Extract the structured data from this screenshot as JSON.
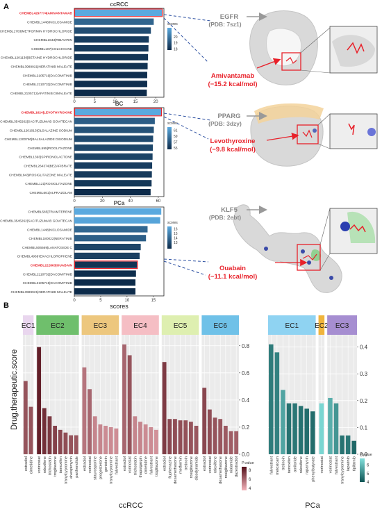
{
  "panel_labels": {
    "a": "A",
    "b": "B"
  },
  "chart_data": [
    {
      "type": "bar",
      "orientation": "horizontal",
      "title": "ccRCC",
      "xlabel": "",
      "categories": [
        "CHEMBL4297774|AMIVANTAMAB",
        "CHEMBL1448|NICLOSAMIDE",
        "CHEMBL1703|METFORMIN HYDROCHLORIDE",
        "CHEMBL1643|RIBAVIRIN",
        "CHEMBL107|COLCHICINE",
        "CHEMBL1201130|BETAINE HYDROCHLORIDE",
        "CHEMBL3989921|NERATINIB MALEATE",
        "CHEMBL2105719|DACOMITINIB",
        "CHEMBL2110732|DACOMITINIB",
        "CHEMBL2105712|AFATINIB DIMALEATE"
      ],
      "values": [
        21.5,
        19.5,
        18.8,
        18.3,
        18.2,
        18.1,
        18.0,
        17.9,
        17.9,
        17.8
      ],
      "highlight_index": 0,
      "xticks": [
        "0",
        "5",
        "10",
        "15",
        "20"
      ],
      "xlim": [
        0,
        22
      ],
      "legend": {
        "title": "scores",
        "ticks": [
          "20",
          "19",
          "18"
        ],
        "range": [
          17.8,
          21.5
        ]
      }
    },
    {
      "type": "bar",
      "orientation": "horizontal",
      "title": "BC",
      "xlabel": "",
      "categories": [
        "CHEMBL1624|LEVOTHYROXINE",
        "CHEMBL3545262|SACITUZUMAB GOVITECAN",
        "CHEMBL1201013|OLSALAZINE SODIUM",
        "CHEMBL1200760|BALSALAZIDE DISODIUM",
        "CHEMBL595|PIOGLITAZONE",
        "CHEMBL1393|SPIRONOLACTONE",
        "CHEMBL264374|BEZAFIBRATE",
        "CHEMBL843|ROSIGLITAZONE MALEATE",
        "CHEMBL121|ROSIGLITAZONE",
        "CHEMBL661|ALPRAZOLAM"
      ],
      "values": [
        62.0,
        57.5,
        56.8,
        56.3,
        56.1,
        55.9,
        55.6,
        55.4,
        55.2,
        54.5
      ],
      "highlight_index": 0,
      "xticks": [
        "0",
        "20",
        "40",
        "60"
      ],
      "xlim": [
        0,
        64
      ],
      "legend": {
        "title": "scores",
        "ticks": [
          "61",
          "59",
          "57",
          "55"
        ],
        "range": [
          54.5,
          62.0
        ]
      }
    },
    {
      "type": "bar",
      "orientation": "horizontal",
      "title": "PCa",
      "xlabel": "scores",
      "categories": [
        "CHEMBL585|TRIAMTERENE",
        "CHEMBL3545262|SACITUZUMAB GOVITECAN",
        "CHEMBL1448|NICLOSAMIDE",
        "CHEMBL180022|NERATINIB",
        "CHEMBL506569|LANATOSIDE C",
        "CHEMBL496|HEXACHLOROPHENE",
        "CHEMBL222863|OUABAIN",
        "CHEMBL2110732|DACOMITINIB",
        "CHEMBL2105719|DACOMITINIB",
        "CHEMBL3989921|NERATINIB MALEATE"
      ],
      "values": [
        16.5,
        16.3,
        13.9,
        13.6,
        12.6,
        12.4,
        11.9,
        11.7,
        11.6,
        11.6
      ],
      "highlight_index": 6,
      "xticks": [
        "0",
        "5",
        "10",
        "15"
      ],
      "xlim": [
        0,
        17
      ],
      "legend": {
        "title": "scores",
        "ticks": [
          "16",
          "15",
          "14",
          "13"
        ],
        "range": [
          11.6,
          16.5
        ]
      }
    },
    {
      "type": "bar",
      "title": "ccRCC",
      "ylabel": "Drug.therapeutic.score",
      "ylim": [
        0,
        0.85
      ],
      "yticks": [
        "0.0",
        "0.2",
        "0.4",
        "0.6",
        "0.8"
      ],
      "groups": [
        {
          "label": "EC1",
          "color": "#E9D6EE",
          "categories": [
            "estradiol",
            "cimetidine"
          ],
          "values": [
            0.54,
            0.35
          ],
          "pvalues": [
            6.6,
            6.6
          ]
        },
        {
          "label": "EC2",
          "color": "#6FBF6C",
          "categories": [
            "vorinostat",
            "raloxifene",
            "trichostatin",
            "troglitazone",
            "tamoxifen",
            "tranylcypromine",
            "alvespimycin",
            "parthenolide"
          ],
          "values": [
            0.79,
            0.34,
            0.28,
            0.21,
            0.18,
            0.16,
            0.14,
            0.14
          ],
          "pvalues": [
            8.3,
            7.8,
            7.5,
            7.2,
            7.0,
            6.8,
            6.6,
            6.5
          ]
        },
        {
          "label": "EC3",
          "color": "#EDC77E",
          "categories": [
            "estradiol",
            "vorinostat",
            "staurosporine",
            "progesterone",
            "genistein",
            "tranylcypromine",
            "fulvestrant"
          ],
          "values": [
            0.64,
            0.48,
            0.28,
            0.22,
            0.21,
            0.2,
            0.19
          ],
          "pvalues": [
            5.5,
            6.0,
            5.0,
            5.0,
            4.8,
            4.8,
            4.7
          ]
        },
        {
          "label": "EC4",
          "color": "#F5BEC4",
          "categories": [
            "estradiol",
            "vorinostat",
            "trichostatin",
            "thapsigargin",
            "cimetidine",
            "fulvestrant",
            "troglitazone"
          ],
          "values": [
            0.81,
            0.73,
            0.28,
            0.24,
            0.22,
            0.2,
            0.18
          ],
          "pvalues": [
            6.0,
            6.6,
            5.0,
            5.0,
            4.8,
            4.8,
            4.6
          ]
        },
        {
          "label": "EC5",
          "color": "#DEEFB0",
          "categories": [
            "estradiol",
            "fluphenazine",
            "dexamethasone",
            "metformin",
            "tretinoin",
            "rosiglitazone",
            "disodynamide"
          ],
          "values": [
            0.68,
            0.26,
            0.26,
            0.25,
            0.25,
            0.24,
            0.21
          ],
          "pvalues": [
            7.4,
            7.0,
            6.8,
            6.8,
            6.7,
            6.6,
            6.5
          ]
        },
        {
          "label": "EC6",
          "color": "#6FC1E8",
          "categories": [
            "estradiol",
            "vorinostat",
            "raloxifene",
            "dexamethasone",
            "rosiglitazone",
            "nialamide",
            "dazestradiol"
          ],
          "values": [
            0.49,
            0.33,
            0.27,
            0.26,
            0.21,
            0.17,
            0.17
          ],
          "pvalues": [
            7.0,
            6.8,
            6.6,
            6.5,
            6.4,
            6.3,
            6.2
          ]
        }
      ],
      "legend": {
        "title": "P.value",
        "ticks": [
          "8",
          "6",
          "4"
        ],
        "range": [
          3.5,
          8.8
        ]
      }
    },
    {
      "type": "bar",
      "title": "PCa",
      "ylabel": "",
      "ylim": [
        0,
        0.43
      ],
      "yticks": [
        "0.0",
        "0.1",
        "0.2",
        "0.3",
        "0.4"
      ],
      "groups": [
        {
          "label": "EC1",
          "color": "#8FD3F2",
          "categories": [
            "fulvestrant",
            "meloxicam",
            "tretinoin",
            "tamoxifen",
            "amiloride",
            "raloxifene",
            "rapamycin",
            "phenylbutyrate"
          ],
          "values": [
            0.41,
            0.38,
            0.24,
            0.19,
            0.19,
            0.18,
            0.17,
            0.16
          ],
          "pvalues": [
            4.8,
            4.9,
            5.6,
            4.6,
            4.7,
            4.6,
            4.5,
            4.5
          ]
        },
        {
          "label": "EC2",
          "color": "#F0B43C",
          "categories": [
            "vorinostat"
          ],
          "values": [
            0.19
          ],
          "pvalues": [
            6.6
          ]
        },
        {
          "label": "EC3",
          "color": "#A68ED1",
          "categories": [
            "vorinostat",
            "fulvestrant",
            "tranylcypromine",
            "lapatinib",
            "tipifarnib"
          ],
          "values": [
            0.21,
            0.19,
            0.07,
            0.07,
            0.05
          ],
          "pvalues": [
            5.8,
            5.3,
            4.6,
            4.7,
            4.4
          ]
        }
      ],
      "legend": {
        "title": "P.value",
        "ticks": [
          "6",
          "5",
          "4"
        ],
        "range": [
          4.0,
          6.8
        ]
      }
    }
  ],
  "annotations": [
    {
      "target": "EGFR",
      "pdb": "(PDB: 7sz1)",
      "drug": "Amivantamab",
      "energy": "(−15.2 kcal/mol)"
    },
    {
      "target": "PPARG",
      "pdb": "(PDB: 3dzy)",
      "drug": "Levothyroxine",
      "energy": "(−9.8 kcal/mol)"
    },
    {
      "target": "KLF5",
      "pdb": "(PDB: 2ebt)",
      "drug": "Ouabain",
      "energy": "(−11.1 kcal/mol)"
    }
  ],
  "colors": {
    "highlight": "#E8212A",
    "bar_dark": "#0D2B4A",
    "bar_light": "#5AA9DF",
    "col_dark": "#54101A",
    "col_light": "#F2B3BA",
    "teal_dark": "#0E5454",
    "teal_light": "#82E0DC",
    "panel_bg": "#EBEBEB"
  },
  "icons": [
    "arrow-right-icon"
  ]
}
